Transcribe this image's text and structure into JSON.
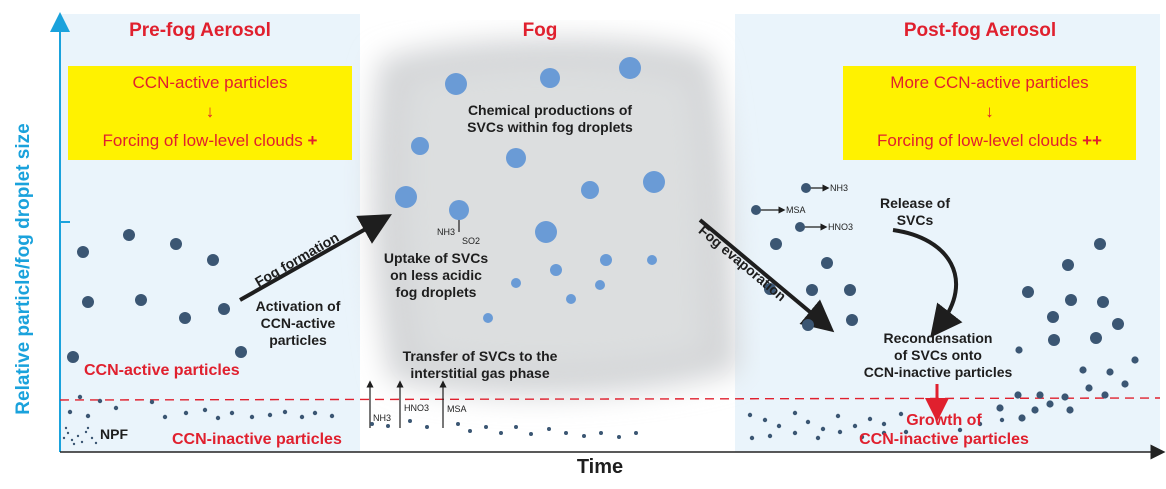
{
  "axes": {
    "y_label": "Relative particle/fog droplet size",
    "x_label": "Time"
  },
  "panels": {
    "pre": {
      "title": "Pre-fog Aerosol",
      "box_line1": "CCN-active particles",
      "box_arrow": "↓",
      "box_line3": "Forcing of low-level clouds",
      "box_plus": "+",
      "label_active": "CCN-active particles",
      "label_inactive": "CCN-inactive particles",
      "label_npf": "NPF"
    },
    "fog": {
      "title": "Fog",
      "chem_line1": "Chemical productions of",
      "chem_line2": "SVCs within fog droplets",
      "uptake_line1": "Uptake of SVCs",
      "uptake_line2": "on less acidic",
      "uptake_line3": "fog droplets",
      "transfer_line1": "Transfer of SVCs to the",
      "transfer_line2": "interstitial gas phase",
      "gas_nh3": "NH3",
      "gas_so2": "SO2",
      "bottom_nh3": "NH3",
      "bottom_hno3": "HNO3",
      "bottom_msa": "MSA"
    },
    "post": {
      "title": "Post-fog Aerosol",
      "box_line1": "More CCN-active particles",
      "box_arrow": "↓",
      "box_line3": "Forcing of low-level clouds",
      "box_plus": "++",
      "release_line1": "Release of",
      "release_line2": "SVCs",
      "recond_line1": "Recondensation",
      "recond_line2": "of SVCs onto",
      "recond_line3": "CCN-inactive particles",
      "growth_line1": "Growth of",
      "growth_line2": "CCN-inactive particles",
      "gas_nh3": "NH3",
      "gas_msa": "MSA",
      "gas_hno3": "HNO3"
    }
  },
  "transitions": {
    "fog_formation": "Fog formation",
    "activation_line1": "Activation of",
    "activation_line2": "CCN-active",
    "activation_line3": "particles",
    "fog_evaporation": "Fog evaporation"
  },
  "colors": {
    "axis": "#1aa2dc",
    "accent_red": "#e0202e",
    "highlight_box": "#fff200",
    "panel_bg": "#eaf4fb",
    "particle": "#3b5673",
    "droplet": "#6a9bd6"
  }
}
